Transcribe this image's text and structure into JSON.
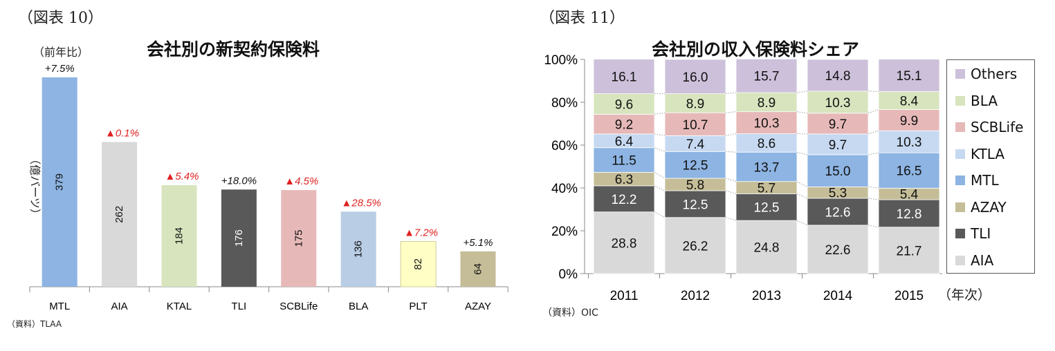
{
  "fig10": {
    "fig_label": "（図表 10）",
    "source": "（資料）TLAA"
  },
  "fig11": {
    "fig_label": "（図表 11）",
    "source": "（資料）OIC"
  },
  "chart_data": [
    {
      "type": "bar",
      "title": "会社別の新契約保険料",
      "ylabel": "（億バーツ）",
      "growth_label": "（前年比）",
      "categories": [
        "MTL",
        "AIA",
        "KTAL",
        "TLI",
        "SCBLife",
        "BLA",
        "PLT",
        "AZAY"
      ],
      "values": [
        379,
        262,
        184,
        176,
        175,
        136,
        82,
        64
      ],
      "colors": [
        "#8db4e2",
        "#d9d9d9",
        "#d7e4bd",
        "#595959",
        "#e6b9b8",
        "#b9cde5",
        "#ffffc5",
        "#c4bd97"
      ],
      "growth": [
        "+7.5%",
        "▲0.1%",
        "▲5.4%",
        "+18.0%",
        "▲4.5%",
        "▲28.5%",
        "▲7.2%",
        "+5.1%"
      ],
      "ylim": [
        0,
        400
      ]
    },
    {
      "type": "bar",
      "stacked": true,
      "title": "会社別の収入保険料シェア",
      "xlabel": "（年次）",
      "categories": [
        "2011",
        "2012",
        "2013",
        "2014",
        "2015"
      ],
      "yticks": [
        "0%",
        "20%",
        "40%",
        "60%",
        "80%",
        "100%"
      ],
      "ylim": [
        0,
        100
      ],
      "series": [
        {
          "name": "AIA",
          "color": "#d9d9d9",
          "values": [
            28.8,
            26.2,
            24.8,
            22.6,
            21.7
          ]
        },
        {
          "name": "TLI",
          "color": "#595959",
          "values": [
            12.2,
            12.5,
            12.5,
            12.6,
            12.8
          ]
        },
        {
          "name": "AZAY",
          "color": "#c4bd97",
          "values": [
            6.3,
            5.8,
            5.7,
            5.3,
            5.4
          ]
        },
        {
          "name": "MTL",
          "color": "#8db4e2",
          "values": [
            11.5,
            12.5,
            13.7,
            15.0,
            16.5
          ]
        },
        {
          "name": "KTLA",
          "color": "#c6d9f1",
          "values": [
            6.4,
            7.4,
            8.6,
            9.7,
            10.3
          ]
        },
        {
          "name": "SCBLife",
          "color": "#e6b9b8",
          "values": [
            9.2,
            10.7,
            10.3,
            9.7,
            9.9
          ]
        },
        {
          "name": "BLA",
          "color": "#d7e4bd",
          "values": [
            9.6,
            8.9,
            8.9,
            10.3,
            8.4
          ]
        },
        {
          "name": "Others",
          "color": "#ccc0da",
          "values": [
            16.1,
            16.0,
            15.7,
            14.8,
            15.1
          ]
        }
      ],
      "legend_order": [
        "Others",
        "BLA",
        "SCBLife",
        "KTLA",
        "MTL",
        "AZAY",
        "TLI",
        "AIA"
      ],
      "legend": "right"
    }
  ]
}
